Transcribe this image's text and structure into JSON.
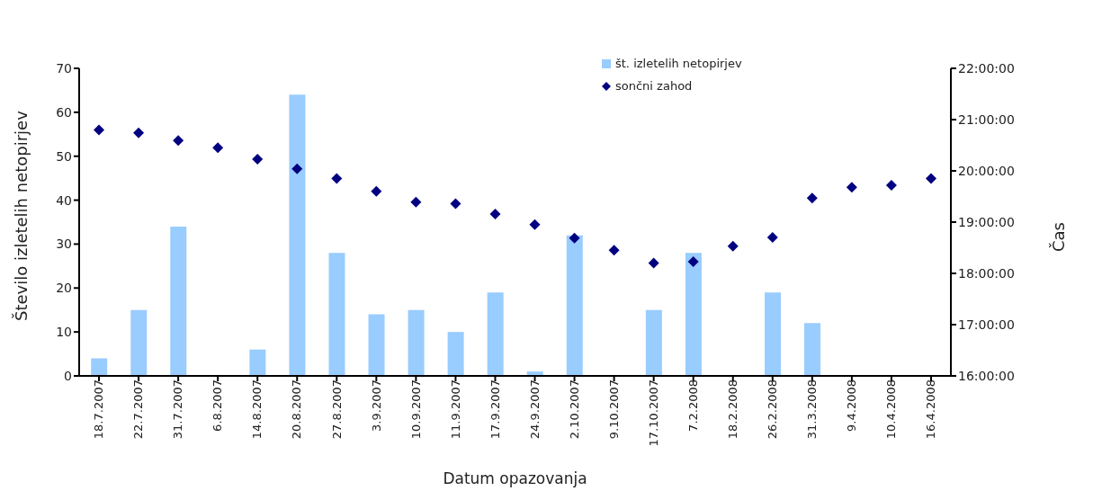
{
  "chart_data": {
    "type": "bar",
    "xlabel": "Datum opazovanja",
    "ylabel": "Število izletelih netopirjev",
    "y2label": "Čas",
    "categories": [
      "18.7.2007",
      "22.7.2007",
      "31.7.2007",
      "6.8.2007",
      "14.8.2007",
      "20.8.2007",
      "27.8.2007",
      "3.9.2007",
      "10.9.2007",
      "11.9.2007",
      "17.9.2007",
      "24.9.2007",
      "2.10.2007",
      "9.10.2007",
      "17.10.2007",
      "7.2.2008",
      "18.2.2008",
      "26.2.2008",
      "31.3.2008",
      "9.4.2008",
      "10.4.2008",
      "16.4.2008"
    ],
    "series": [
      {
        "name": "št. izletelih netopirjev",
        "color": "#99ccff",
        "values": [
          4,
          15,
          34,
          0,
          6,
          64,
          28,
          14,
          15,
          10,
          19,
          1,
          32,
          0,
          15,
          28,
          0,
          19,
          12,
          0,
          0,
          0
        ]
      },
      {
        "name": "sončni zahod",
        "type": "scatter",
        "axis": "y2",
        "marker": "diamond",
        "color": "#000080",
        "values": [
          20.8,
          20.74,
          20.59,
          20.45,
          20.23,
          20.04,
          19.85,
          19.6,
          19.39,
          19.36,
          19.16,
          18.95,
          18.69,
          18.45,
          18.2,
          18.23,
          18.53,
          18.7,
          19.47,
          19.68,
          19.72,
          19.85
        ]
      }
    ],
    "ylim": [
      0,
      70
    ],
    "yticks": [
      0,
      10,
      20,
      30,
      40,
      50,
      60,
      70
    ],
    "y2lim": [
      16,
      22
    ],
    "y2ticks": [
      {
        "value": 16,
        "label": "16:00:00"
      },
      {
        "value": 17,
        "label": "17:00:00"
      },
      {
        "value": 18,
        "label": "18:00:00"
      },
      {
        "value": 19,
        "label": "19:00:00"
      },
      {
        "value": 20,
        "label": "20:00:00"
      },
      {
        "value": 21,
        "label": "21:00:00"
      },
      {
        "value": 22,
        "label": "22:00:00"
      }
    ],
    "grid": false,
    "legend": "top"
  }
}
